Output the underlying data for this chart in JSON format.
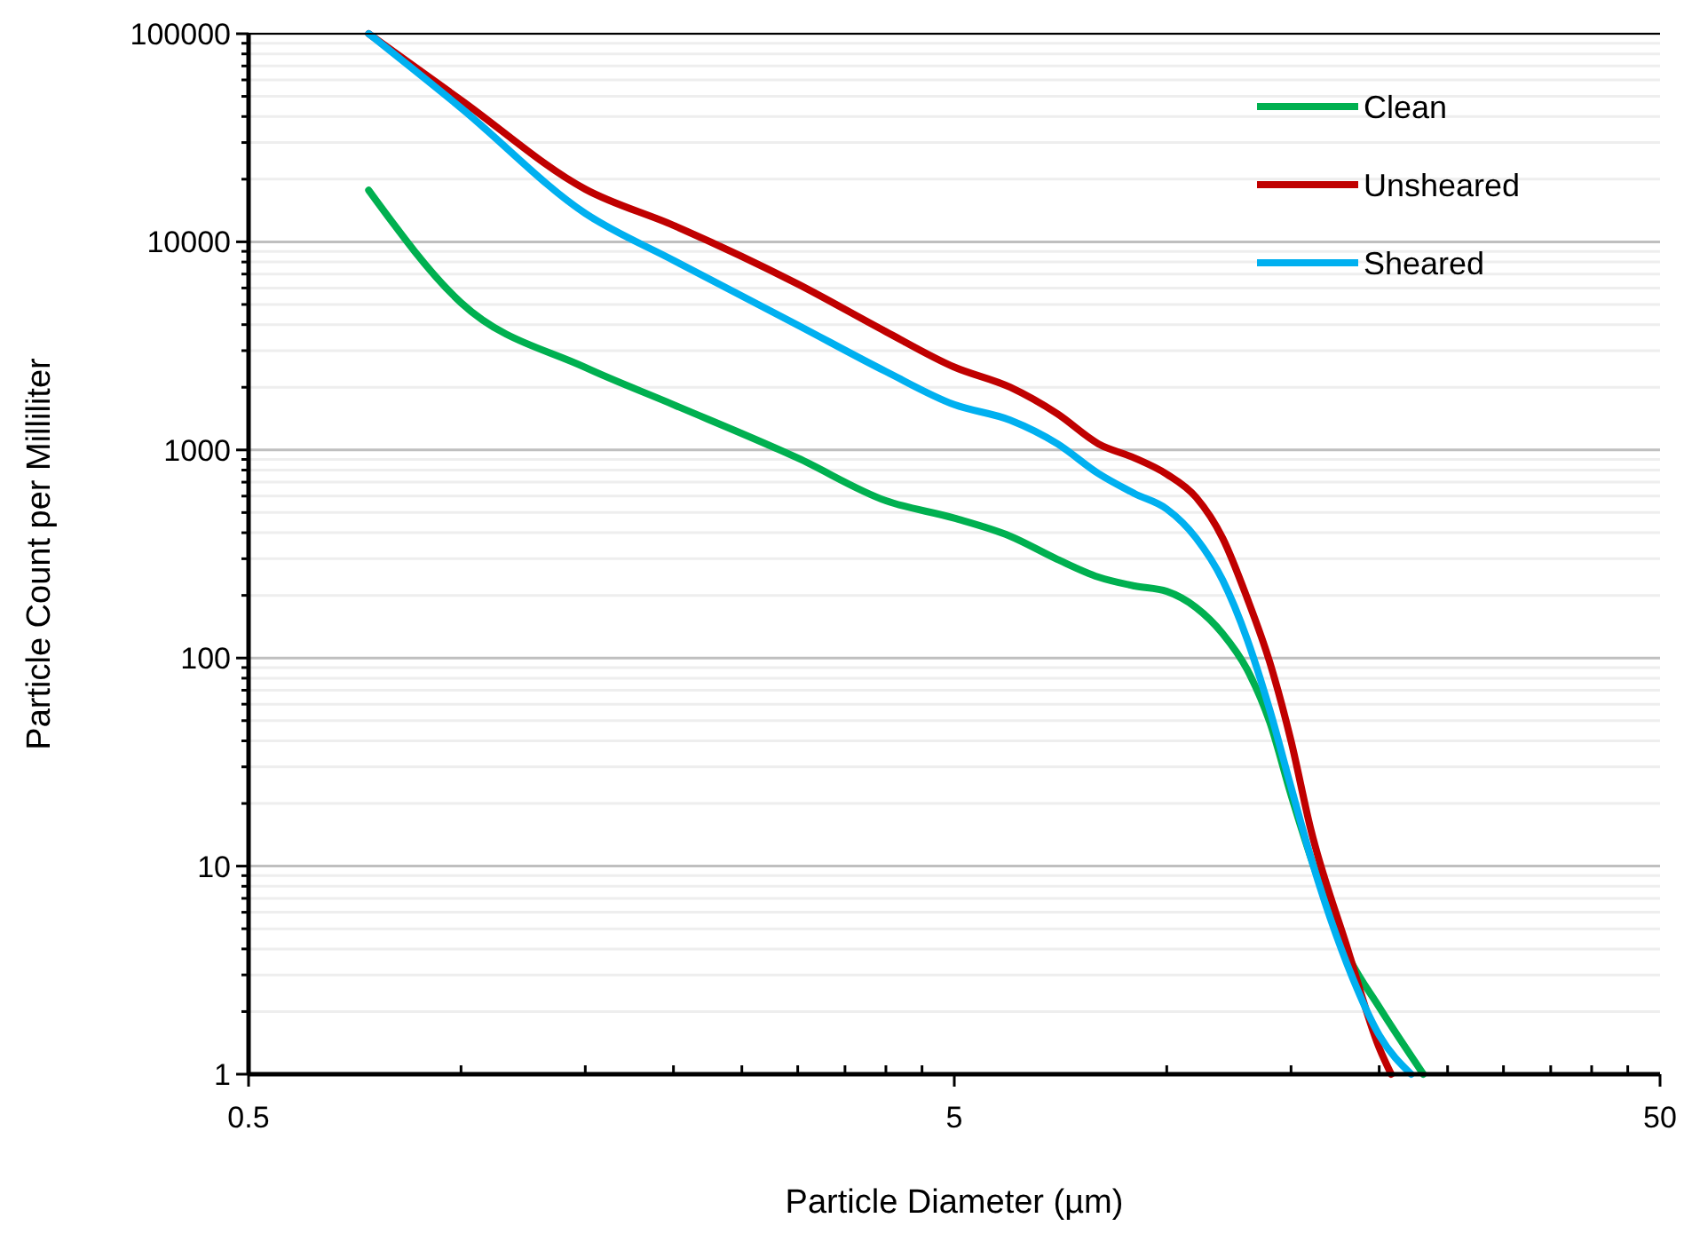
{
  "chart_data": {
    "type": "line",
    "xlabel": "Particle Diameter (µm)",
    "ylabel": "Particle Count per Milliliter",
    "log": "xy",
    "xlim": [
      0.5,
      50
    ],
    "xticks": [
      0.5,
      5,
      50
    ],
    "ylim": [
      1,
      100000
    ],
    "yticks": [
      1,
      10,
      100,
      1000,
      10000,
      100000
    ],
    "grid": "y",
    "legend": "top right",
    "marker": "none",
    "line_style": "solid",
    "series": [
      {
        "name": "Clean",
        "color": "#00b050",
        "x": [
          0.74,
          1,
          1.5,
          2,
          3,
          4,
          5,
          6,
          7,
          8,
          9,
          10,
          11,
          12,
          13,
          14,
          15,
          16,
          18,
          20,
          23.1
        ],
        "values": [
          17700,
          5100,
          2490,
          1650,
          914,
          570,
          470,
          385,
          298,
          245,
          222,
          209,
          175,
          131,
          88,
          49,
          22,
          11,
          3.8,
          2.1,
          1
        ]
      },
      {
        "name": "Unsheared",
        "color": "#c00000",
        "x": [
          0.74,
          1,
          1.5,
          2,
          3,
          4,
          5,
          6,
          7,
          8,
          9,
          10,
          11,
          12,
          13,
          14,
          15,
          16,
          18,
          20,
          20.8
        ],
        "values": [
          100000,
          48000,
          17900,
          12000,
          6270,
          3700,
          2500,
          2000,
          1490,
          1070,
          915,
          765,
          593,
          377,
          194,
          95,
          40,
          15,
          4.1,
          1.34,
          1
        ]
      },
      {
        "name": "Sheared",
        "color": "#00b0f0",
        "x": [
          0.74,
          1,
          1.5,
          2,
          3,
          4,
          5,
          6,
          7,
          8,
          9,
          10,
          11,
          12,
          13,
          14,
          15,
          16,
          18,
          20,
          22.2
        ],
        "values": [
          100000,
          44000,
          13700,
          8150,
          3980,
          2380,
          1650,
          1390,
          1070,
          770,
          617,
          520,
          378,
          237,
          123,
          56,
          24,
          11,
          3.4,
          1.54,
          1
        ]
      }
    ]
  }
}
